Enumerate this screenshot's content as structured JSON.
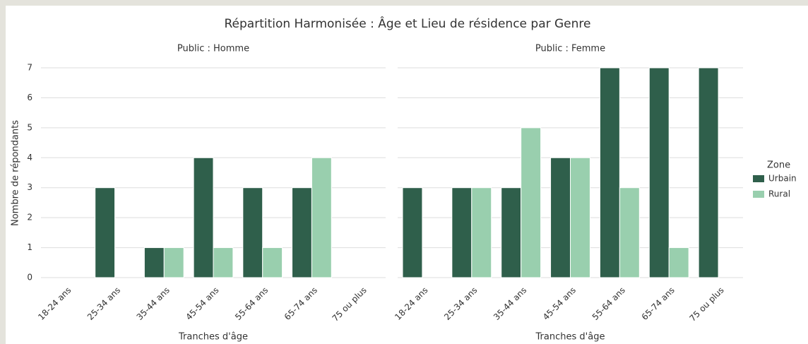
{
  "title": "Répartition Harmonisée : Âge et Lieu de résidence par Genre",
  "ylabel": "Nombre de répondants",
  "legend_title": "Zone",
  "chart_data": [
    {
      "type": "bar",
      "title": "Public : Homme",
      "xlabel": "Tranches d'âge",
      "categories": [
        "18-24 ans",
        "25-34 ans",
        "35-44 ans",
        "45-54 ans",
        "55-64 ans",
        "65-74 ans",
        "75 ou plus"
      ],
      "series": [
        {
          "name": "Urbain",
          "color": "#2f5f4b",
          "values": [
            0,
            3,
            1,
            4,
            3,
            3,
            0
          ]
        },
        {
          "name": "Rural",
          "color": "#99cfae",
          "values": [
            0,
            0,
            1,
            1,
            1,
            4,
            0
          ]
        }
      ],
      "ylim": [
        0,
        7
      ],
      "yticks": [
        0,
        1,
        2,
        3,
        4,
        5,
        6,
        7
      ],
      "grid": true
    },
    {
      "type": "bar",
      "title": "Public : Femme",
      "xlabel": "Tranches d'âge",
      "categories": [
        "18-24 ans",
        "25-34 ans",
        "35-44 ans",
        "45-54 ans",
        "55-64 ans",
        "65-74 ans",
        "75 ou plus"
      ],
      "series": [
        {
          "name": "Urbain",
          "color": "#2f5f4b",
          "values": [
            3,
            3,
            3,
            4,
            7,
            7,
            7
          ]
        },
        {
          "name": "Rural",
          "color": "#99cfae",
          "values": [
            0,
            3,
            5,
            4,
            3,
            1,
            0
          ]
        }
      ],
      "ylim": [
        0,
        7
      ],
      "yticks": [
        0,
        1,
        2,
        3,
        4,
        5,
        6,
        7
      ],
      "grid": true
    }
  ]
}
